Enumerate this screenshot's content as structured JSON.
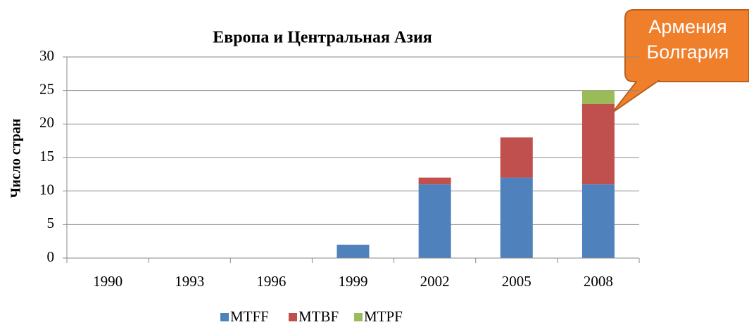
{
  "chart_data": {
    "type": "stacked_bar",
    "title": "Европа и Центральная Азия",
    "y_label": "Число стран",
    "categories": [
      "1990",
      "1993",
      "1996",
      "1999",
      "2002",
      "2005",
      "2008"
    ],
    "series": [
      {
        "name": "MTFF",
        "color": "#4f81bd",
        "values": [
          0,
          0,
          0,
          2,
          11,
          12,
          11
        ]
      },
      {
        "name": "MTBF",
        "color": "#c0504d",
        "values": [
          0,
          0,
          0,
          0,
          1,
          6,
          12
        ]
      },
      {
        "name": "MTPF",
        "color": "#9bbb59",
        "values": [
          0,
          0,
          0,
          0,
          0,
          0,
          2
        ]
      }
    ],
    "ylim": [
      0,
      30
    ],
    "yticks": [
      0,
      5,
      10,
      15,
      20,
      25,
      30
    ],
    "grid": true,
    "legend": "bottom",
    "annotation": [
      "Армения",
      "Болгария"
    ]
  }
}
